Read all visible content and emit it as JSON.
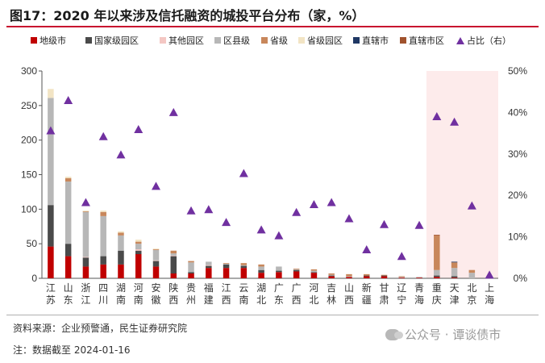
{
  "title": "图17：2020 年以来涉及信托融资的城投平台分布（家，%）",
  "source": "资料来源：企业预警通，民生证券研究院",
  "note": "注：数据截至 2024-01-16",
  "watermark": "公众号 · 谭谈债市",
  "chart_data": {
    "type": "bar",
    "stacked": true,
    "categories": [
      "江苏",
      "山东",
      "浙江",
      "四川",
      "湖南",
      "河南",
      "安徽",
      "陕西",
      "贵州",
      "福建",
      "江西",
      "云南",
      "湖北",
      "广东",
      "广西",
      "河北",
      "吉林",
      "山西",
      "新疆",
      "甘肃",
      "辽宁",
      "青海",
      "重庆",
      "天津",
      "北京",
      "上海"
    ],
    "y_left": {
      "ylim": [
        0,
        300
      ],
      "ticks": [
        0,
        50,
        100,
        150,
        200,
        250,
        300
      ]
    },
    "y_right": {
      "ylim": [
        0,
        50
      ],
      "ticks": [
        "0%",
        "10%",
        "20%",
        "30%",
        "40%",
        "50%"
      ]
    },
    "highlight_categories": [
      "重庆",
      "天津",
      "北京",
      "上海"
    ],
    "series": [
      {
        "name": "地级市",
        "color": "#c00000",
        "values": [
          46,
          32,
          17,
          20,
          20,
          35,
          17,
          7,
          7,
          15,
          15,
          15,
          8,
          9,
          10,
          8,
          3,
          2,
          3,
          3,
          1,
          1,
          2,
          1,
          0,
          0
        ]
      },
      {
        "name": "国家级园区",
        "color": "#4a4a4a",
        "values": [
          60,
          18,
          13,
          12,
          20,
          5,
          8,
          25,
          2,
          3,
          5,
          3,
          4,
          2,
          2,
          1,
          1,
          0,
          1,
          1,
          0,
          0,
          2,
          2,
          0,
          0
        ]
      },
      {
        "name": "其他园区",
        "color": "#f4c7c3",
        "values": [
          0,
          0,
          1,
          0,
          0,
          2,
          1,
          1,
          0,
          1,
          0,
          0,
          0,
          0,
          0,
          0,
          0,
          0,
          0,
          0,
          0,
          0,
          0,
          0,
          0,
          0
        ]
      },
      {
        "name": "区县级",
        "color": "#b7b7b7",
        "values": [
          155,
          90,
          65,
          58,
          22,
          8,
          15,
          3,
          14,
          5,
          1,
          1,
          5,
          6,
          1,
          2,
          1,
          1,
          0,
          0,
          1,
          1,
          8,
          12,
          8,
          1
        ]
      },
      {
        "name": "省级",
        "color": "#c8875b",
        "values": [
          0,
          5,
          1,
          6,
          4,
          3,
          1,
          4,
          2,
          0,
          1,
          3,
          3,
          0,
          1,
          2,
          2,
          3,
          2,
          1,
          1,
          0,
          50,
          8,
          4,
          0
        ]
      },
      {
        "name": "省级园区",
        "color": "#f2e4c4",
        "values": [
          13,
          2,
          1,
          2,
          2,
          3,
          1,
          0,
          0,
          0,
          0,
          0,
          0,
          0,
          0,
          0,
          0,
          0,
          0,
          0,
          0,
          0,
          0,
          0,
          0,
          0
        ]
      },
      {
        "name": "直辖市",
        "color": "#1f3864",
        "values": [
          0,
          0,
          0,
          0,
          0,
          0,
          0,
          0,
          0,
          0,
          0,
          0,
          0,
          0,
          0,
          0,
          0,
          0,
          0,
          0,
          0,
          0,
          0,
          1,
          0,
          0
        ]
      },
      {
        "name": "直辖市区",
        "color": "#a0522d",
        "values": [
          0,
          0,
          0,
          0,
          0,
          0,
          0,
          0,
          0,
          0,
          0,
          0,
          0,
          0,
          0,
          0,
          0,
          0,
          0,
          0,
          0,
          0,
          1,
          0,
          0,
          0
        ]
      }
    ],
    "line_series": {
      "name": "占比（右）",
      "color": "#7030a0",
      "marker": "triangle",
      "values": [
        35.5,
        42.8,
        18.2,
        34.1,
        29.7,
        35.8,
        22.1,
        39.9,
        16.2,
        16.5,
        13.4,
        25.2,
        11.6,
        10.2,
        15.8,
        17.7,
        18.2,
        14.3,
        6.8,
        12.9,
        5.2,
        12.7,
        38.9,
        37.6,
        17.4,
        0.7
      ]
    }
  },
  "legend_labels": [
    "地级市",
    "国家级园区",
    "其他园区",
    "区县级",
    "省级",
    "省级园区",
    "直辖市",
    "直辖市区",
    "占比（右）"
  ]
}
